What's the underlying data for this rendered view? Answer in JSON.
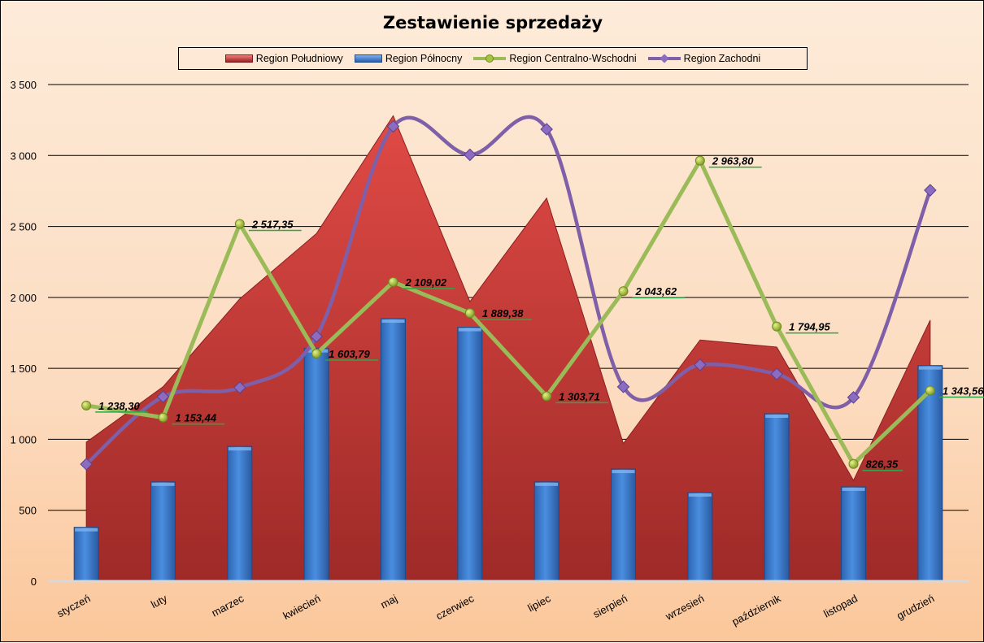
{
  "chart_data": {
    "type": "combo",
    "title": "Zestawienie sprzedaży",
    "categories": [
      "styczeń",
      "luty",
      "marzec",
      "kwiecień",
      "maj",
      "czerwiec",
      "lipiec",
      "sierpień",
      "wrzesień",
      "październik",
      "listopad",
      "grudzień"
    ],
    "ylim": [
      0,
      3500
    ],
    "yticks": [
      0,
      500,
      1000,
      1500,
      2000,
      2500,
      3000,
      3500
    ],
    "ytick_labels": [
      "0",
      "500",
      "1 000",
      "1 500",
      "2 000",
      "2 500",
      "3 000",
      "3 500"
    ],
    "grid": true,
    "legend_position": "top",
    "series": [
      {
        "name": "Region Południowy",
        "type": "area",
        "color": "#c0392b",
        "values": [
          980,
          1370,
          1990,
          2450,
          3280,
          1970,
          2700,
          970,
          1700,
          1650,
          710,
          1840
        ]
      },
      {
        "name": "Region Północny",
        "type": "bar",
        "color": "#3a78c8",
        "values": [
          380,
          700,
          950,
          1640,
          1850,
          1790,
          700,
          790,
          625,
          1180,
          665,
          1520
        ]
      },
      {
        "name": "Region Centralno-Wschodni",
        "type": "line",
        "color": "#9bbb59",
        "values": [
          1238.3,
          1153.44,
          2517.35,
          1603.79,
          2109.02,
          1889.38,
          1303.71,
          2043.62,
          2963.8,
          1794.95,
          826.35,
          1343.56
        ],
        "data_labels": [
          "1 238,30",
          "1 153,44",
          "2 517,35",
          "1 603,79",
          "2 109,02",
          "1 889,38",
          "1 303,71",
          "2 043,62",
          "2 963,80",
          "1 794,95",
          "826,35",
          "1 343,56"
        ]
      },
      {
        "name": "Region Zachodni",
        "type": "smooth-line",
        "color": "#7f5fa8",
        "values": [
          825,
          1300,
          1365,
          1725,
          3205,
          3005,
          3185,
          1370,
          1525,
          1460,
          1295,
          2755
        ]
      }
    ]
  }
}
